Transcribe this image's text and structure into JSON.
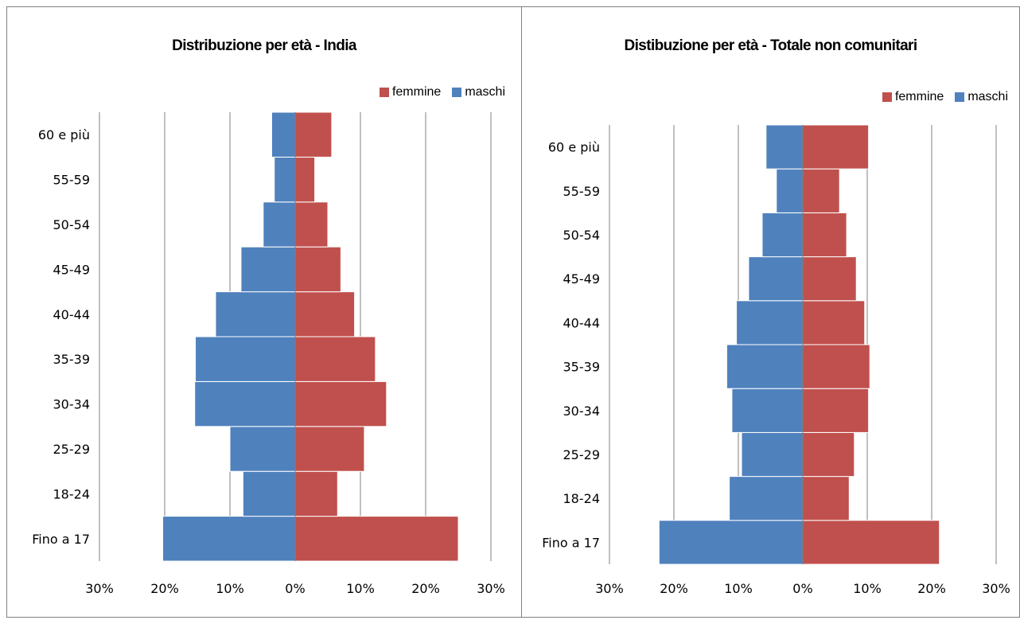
{
  "chart_data": [
    {
      "type": "bar",
      "orientation": "horizontal",
      "stacked_diverging": true,
      "title": "Distribuzione per età - India",
      "categories": [
        "Fino a 17",
        "18-24",
        "25-29",
        "30-34",
        "35-39",
        "40-44",
        "45-49",
        "50-54",
        "55-59",
        "60 e più"
      ],
      "series": [
        {
          "name": "femmine",
          "color": "#c0504d",
          "values": [
            25.0,
            6.5,
            10.6,
            14.0,
            12.3,
            9.1,
            7.0,
            5.0,
            3.0,
            5.6
          ]
        },
        {
          "name": "maschi",
          "color": "#4f81bd",
          "values": [
            -20.3,
            -8.0,
            -10.0,
            -15.4,
            -15.3,
            -12.2,
            -8.3,
            -4.9,
            -3.2,
            -3.6
          ]
        }
      ],
      "xlim": [
        -30,
        30
      ],
      "xticks": [
        -30,
        -20,
        -10,
        0,
        10,
        20,
        30
      ],
      "xtick_labels": [
        "30%",
        "20%",
        "10%",
        "0%",
        "10%",
        "20%",
        "30%"
      ],
      "grid": true,
      "legend": {
        "position": "top-right",
        "entries": [
          "femmine",
          "maschi"
        ]
      }
    },
    {
      "type": "bar",
      "orientation": "horizontal",
      "stacked_diverging": true,
      "title": "Distibuzione per età - Totale non comunitari",
      "categories": [
        "Fino a 17",
        "18-24",
        "25-29",
        "30-34",
        "35-39",
        "40-44",
        "45-49",
        "50-54",
        "55-59",
        "60 e più"
      ],
      "series": [
        {
          "name": "femmine",
          "color": "#c0504d",
          "values": [
            21.2,
            7.2,
            8.0,
            10.2,
            10.4,
            9.6,
            8.3,
            6.8,
            5.7,
            10.2
          ]
        },
        {
          "name": "maschi",
          "color": "#4f81bd",
          "values": [
            -22.3,
            -11.4,
            -9.5,
            -11.0,
            -11.8,
            -10.3,
            -8.4,
            -6.3,
            -4.1,
            -5.7
          ]
        }
      ],
      "xlim": [
        -30,
        30
      ],
      "xticks": [
        -30,
        -20,
        -10,
        0,
        10,
        20,
        30
      ],
      "xtick_labels": [
        "30%",
        "20%",
        "10%",
        "0%",
        "10%",
        "20%",
        "30%"
      ],
      "grid": true,
      "legend": {
        "position": "top-right",
        "entries": [
          "femmine",
          "maschi"
        ]
      }
    }
  ]
}
